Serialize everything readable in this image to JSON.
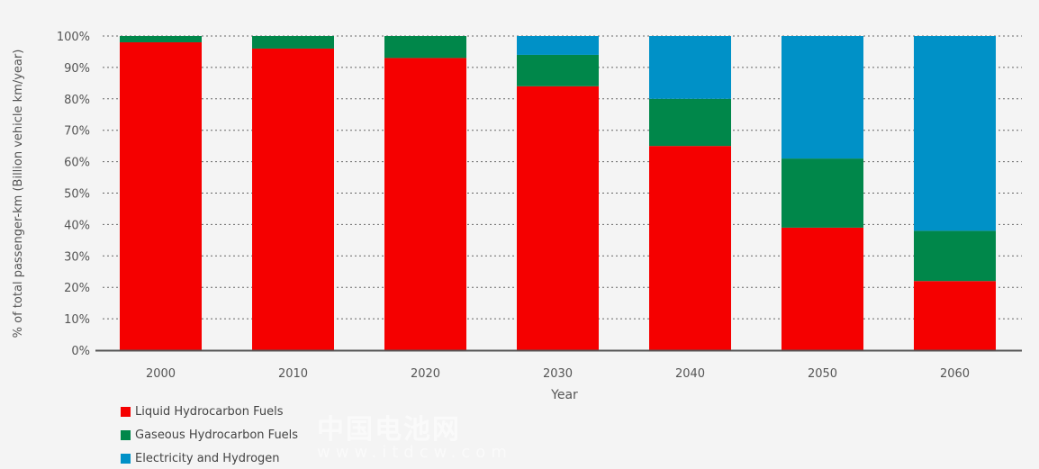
{
  "chart_data": {
    "type": "bar",
    "stacked": true,
    "title": "",
    "xlabel": "Year",
    "ylabel": "% of total passenger-km (Billion vehicle km/year)",
    "ylim": [
      0,
      100
    ],
    "yticks": [
      "0%",
      "10%",
      "20%",
      "30%",
      "40%",
      "50%",
      "60%",
      "70%",
      "80%",
      "90%",
      "100%"
    ],
    "grid": "horizontal dotted",
    "legend_position": "bottom-left",
    "categories": [
      "2000",
      "2010",
      "2020",
      "2030",
      "2040",
      "2050",
      "2060"
    ],
    "series": [
      {
        "name": "Liquid Hydrocarbon Fuels",
        "color": "#f50000",
        "values": [
          98,
          96,
          93,
          84,
          65,
          39,
          22
        ]
      },
      {
        "name": "Gaseous Hydrocarbon Fuels",
        "color": "#00874a",
        "values": [
          2,
          4,
          7,
          10,
          15,
          22,
          16
        ]
      },
      {
        "name": "Electricity and Hydrogen",
        "color": "#0091c7",
        "values": [
          0,
          0,
          0,
          6,
          20,
          39,
          62
        ]
      }
    ]
  },
  "watermark": {
    "line1": "中国电池网",
    "line2": "www.itdcw.com"
  }
}
